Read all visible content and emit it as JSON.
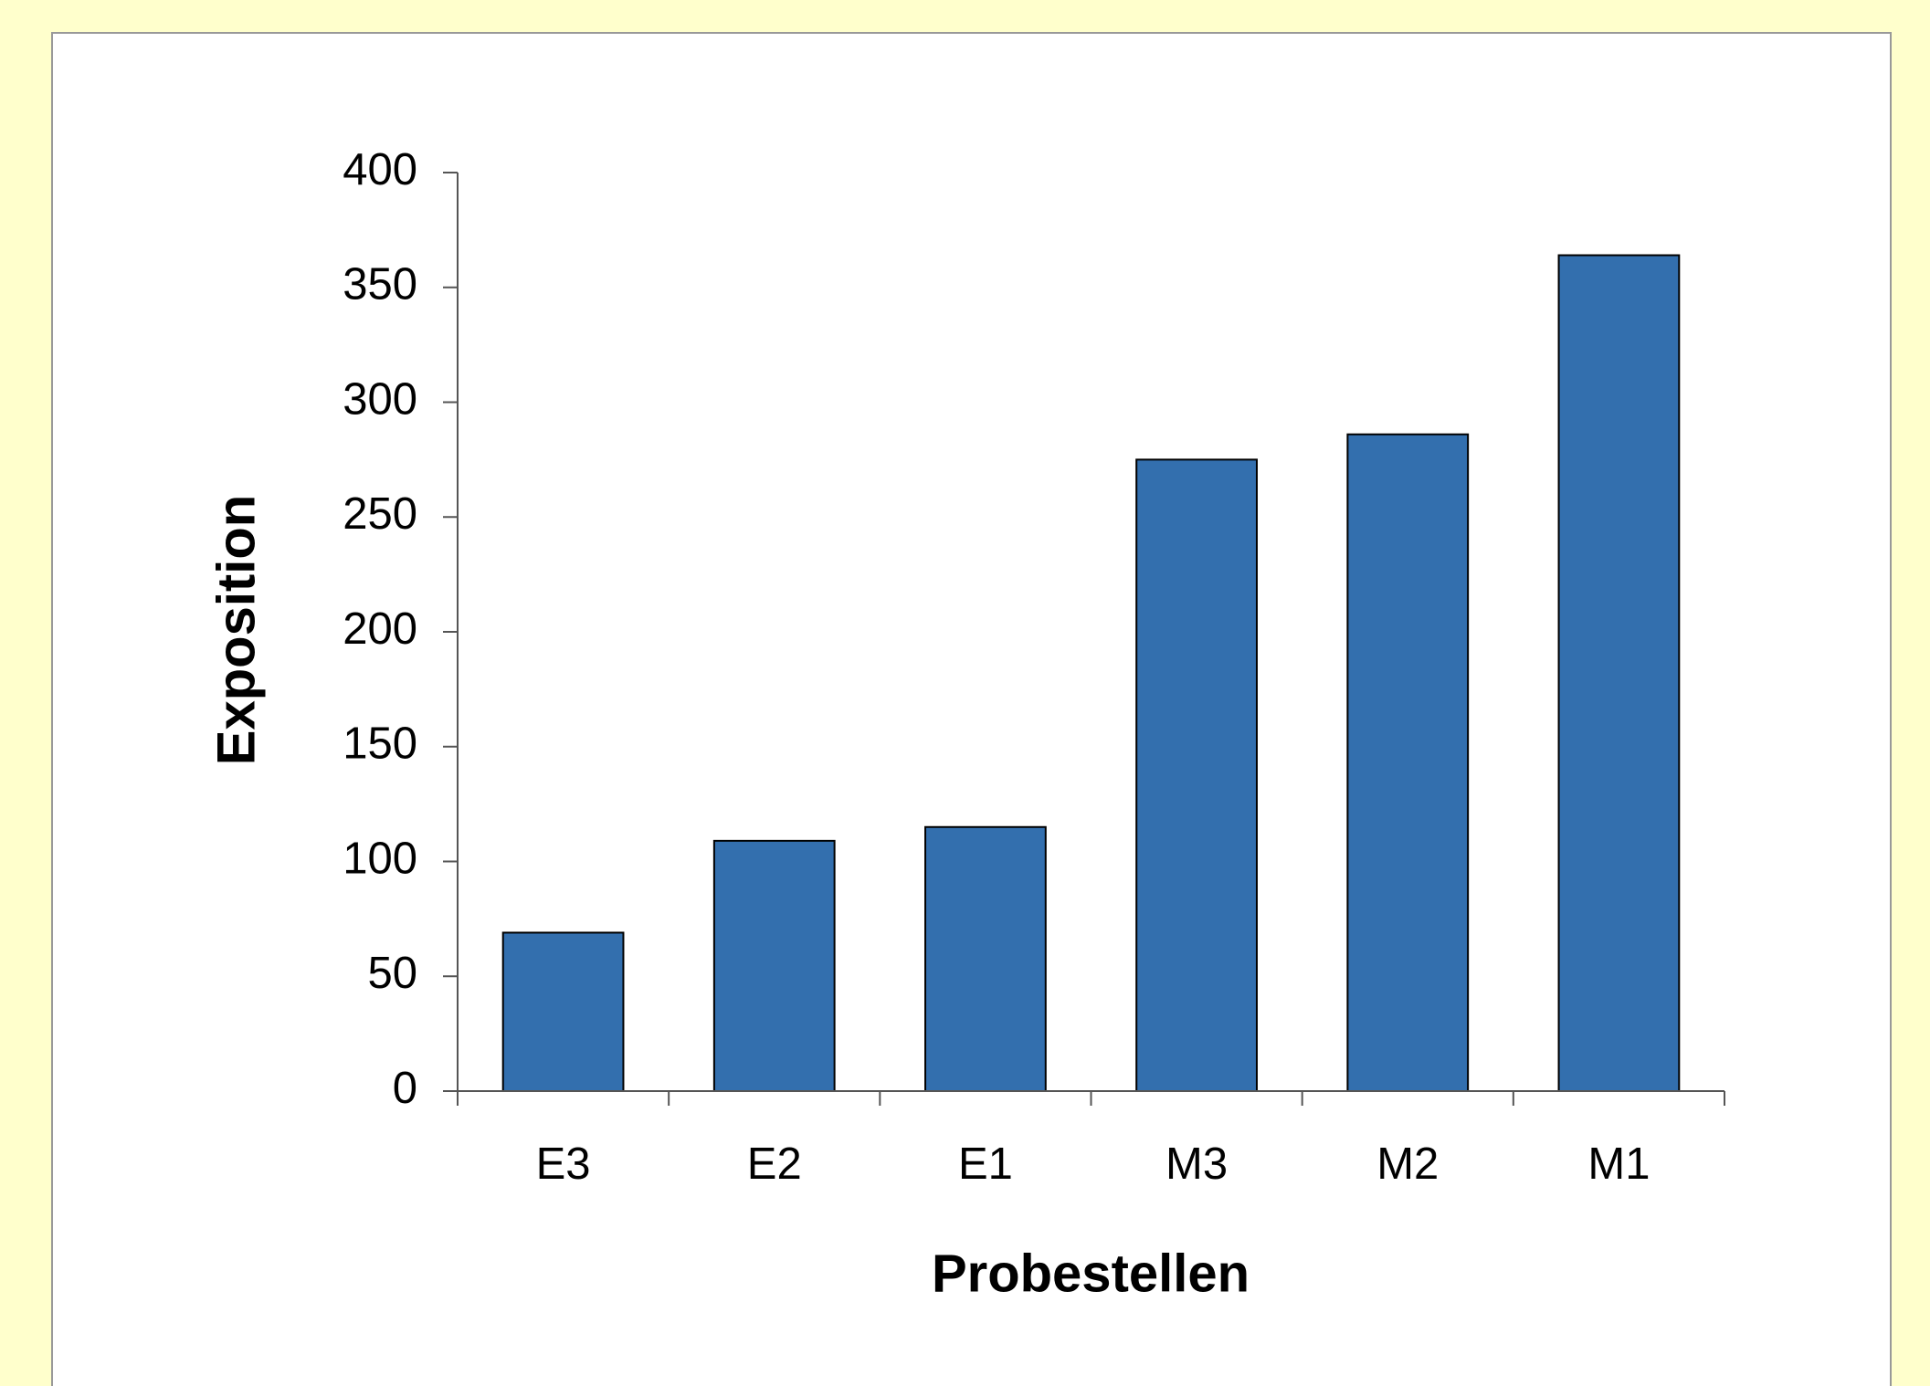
{
  "chart_data": {
    "type": "bar",
    "x_label": "Probestellen",
    "y_label": "Exposition",
    "categories": [
      "E3",
      "E2",
      "E1",
      "M3",
      "M2",
      "M1"
    ],
    "values": [
      69,
      109,
      115,
      275,
      286,
      364
    ],
    "color": "#336fae",
    "ylim": [
      0,
      400
    ],
    "yticks": [
      0,
      50,
      100,
      150,
      200,
      250,
      300,
      350,
      400
    ],
    "grid": false
  }
}
